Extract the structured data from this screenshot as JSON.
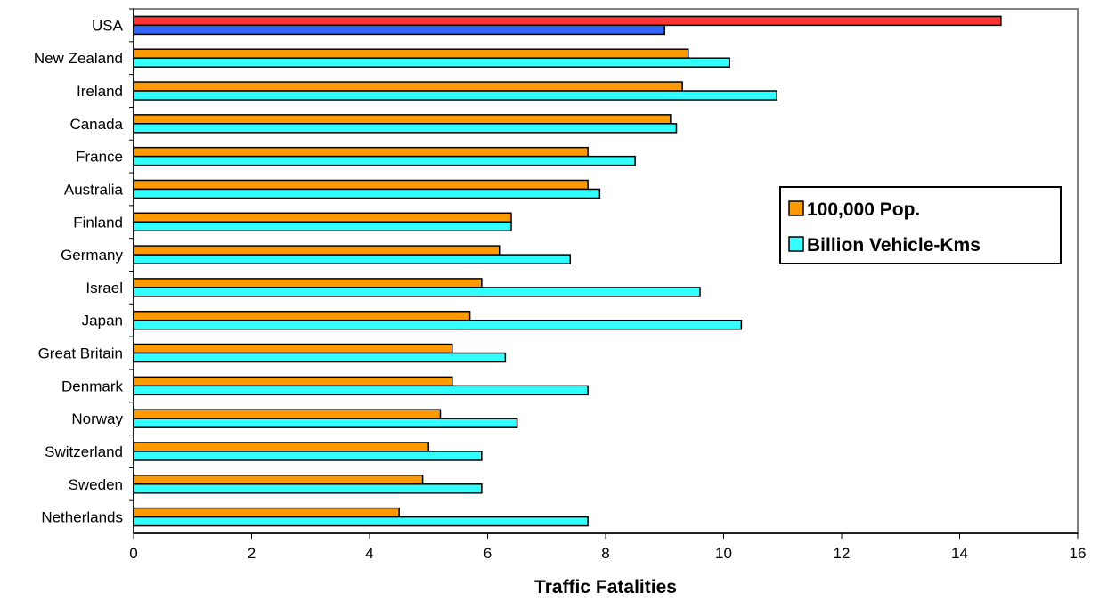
{
  "chart_data": {
    "type": "bar",
    "orientation": "horizontal",
    "title": "",
    "xlabel": "Traffic Fatalities",
    "ylabel": "",
    "xlim": [
      0,
      16
    ],
    "xticks": [
      0,
      2,
      4,
      6,
      8,
      10,
      12,
      14,
      16
    ],
    "grid": false,
    "legend_position": "right",
    "categories": [
      "USA",
      "New Zealand",
      "Ireland",
      "Canada",
      "France",
      "Australia",
      "Finland",
      "Germany",
      "Israel",
      "Japan",
      "Great Britain",
      "Denmark",
      "Norway",
      "Switzerland",
      "Sweden",
      "Netherlands"
    ],
    "series": [
      {
        "name": "100,000 Pop.",
        "color": "#FF9900",
        "values": [
          14.7,
          9.4,
          9.3,
          9.1,
          7.7,
          7.7,
          6.4,
          6.2,
          5.9,
          5.7,
          5.4,
          5.4,
          5.2,
          5.0,
          4.9,
          4.5
        ]
      },
      {
        "name": "Billion Vehicle-Kms",
        "color": "#33FFFF",
        "values": [
          9.0,
          10.1,
          10.9,
          9.2,
          8.5,
          7.9,
          6.4,
          7.4,
          9.6,
          10.3,
          6.3,
          7.7,
          6.5,
          5.9,
          5.9,
          7.7
        ]
      }
    ],
    "highlight": {
      "category": "USA",
      "colors": [
        "#FF3333",
        "#3366FF"
      ]
    }
  }
}
